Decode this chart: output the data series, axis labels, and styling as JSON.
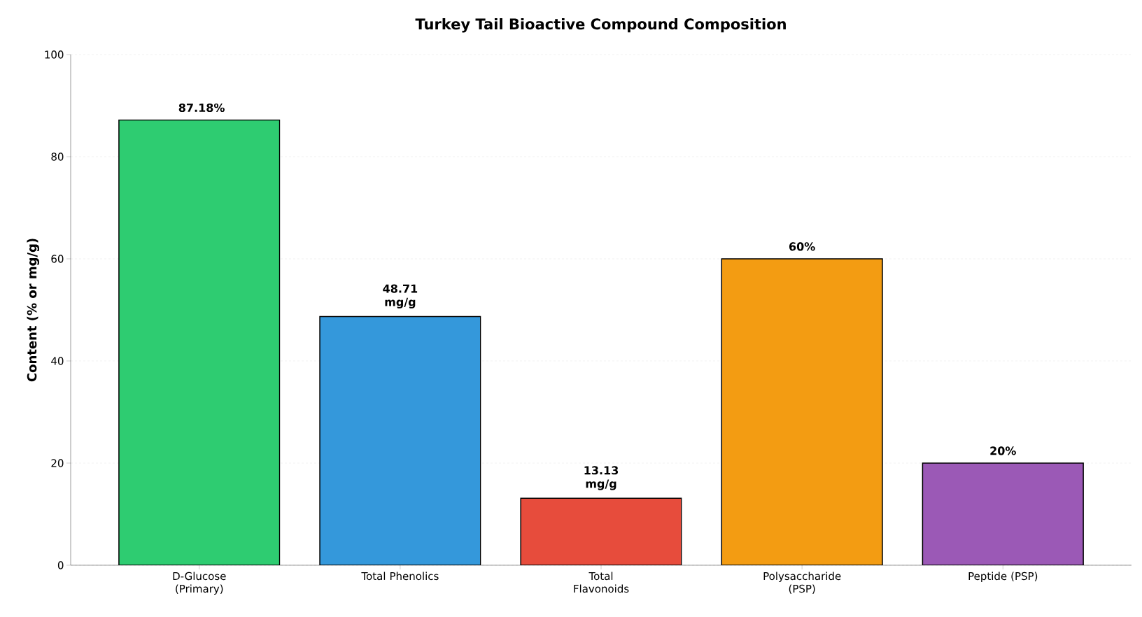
{
  "chart_data": {
    "type": "bar",
    "title": "Turkey Tail Bioactive Compound Composition",
    "ylabel": "Content (% or mg/g)",
    "categories": [
      "D-Glucose (Primary)",
      "Total Phenolics",
      "Total Flavonoids",
      "Polysaccharide (PSP)",
      "Peptide (PSP)"
    ],
    "values": [
      87.18,
      48.71,
      13.13,
      60,
      20
    ],
    "colors": [
      "#2ecc71",
      "#3498db",
      "#e74c3c",
      "#f39c12",
      "#9b59b6"
    ],
    "value_labels": [
      "87.18%",
      "48.71 mg/g",
      "13.13 mg/g",
      "60%",
      "20%"
    ],
    "ylim": [
      0,
      100
    ],
    "yticks": [
      0,
      20,
      40,
      60,
      80,
      100
    ],
    "grid": "y"
  }
}
